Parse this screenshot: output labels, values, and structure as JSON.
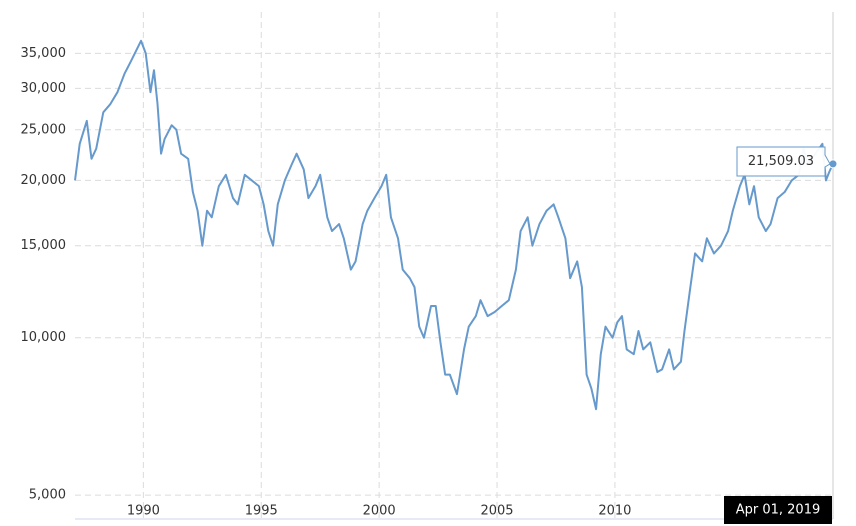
{
  "chart_data": {
    "type": "line",
    "log_scale": true,
    "grid": true,
    "color": "#6699cc",
    "xlim": [
      1987.1,
      2019.25
    ],
    "xticks": [
      1990,
      1995,
      2000,
      2005,
      2010
    ],
    "ylim": [
      4500,
      42000
    ],
    "yticks": [
      {
        "value": 5000,
        "label": "5,000"
      },
      {
        "value": 10000,
        "label": "10,000"
      },
      {
        "value": 15000,
        "label": "15,000"
      },
      {
        "value": 20000,
        "label": "20,000"
      },
      {
        "value": 25000,
        "label": "25,000"
      },
      {
        "value": 30000,
        "label": "30,000"
      },
      {
        "value": 35000,
        "label": "35,000"
      }
    ],
    "x": [
      1987.1,
      1987.3,
      1987.6,
      1987.8,
      1988.0,
      1988.3,
      1988.6,
      1988.9,
      1989.2,
      1989.5,
      1989.9,
      1990.1,
      1990.3,
      1990.45,
      1990.6,
      1990.75,
      1990.9,
      1991.2,
      1991.4,
      1991.6,
      1991.9,
      1992.1,
      1992.3,
      1992.5,
      1992.7,
      1992.9,
      1993.2,
      1993.5,
      1993.8,
      1994.0,
      1994.3,
      1994.6,
      1994.9,
      1995.1,
      1995.3,
      1995.5,
      1995.7,
      1996.0,
      1996.3,
      1996.5,
      1996.8,
      1997.0,
      1997.3,
      1997.5,
      1997.8,
      1998.0,
      1998.3,
      1998.5,
      1998.8,
      1999.0,
      1999.3,
      1999.5,
      1999.8,
      2000.1,
      2000.3,
      2000.5,
      2000.8,
      2001.0,
      2001.3,
      2001.5,
      2001.7,
      2001.9,
      2002.2,
      2002.4,
      2002.6,
      2002.8,
      2003.0,
      2003.3,
      2003.6,
      2003.8,
      2004.1,
      2004.3,
      2004.6,
      2004.9,
      2005.2,
      2005.5,
      2005.8,
      2006.0,
      2006.3,
      2006.5,
      2006.8,
      2007.1,
      2007.4,
      2007.6,
      2007.9,
      2008.1,
      2008.4,
      2008.6,
      2008.8,
      2009.0,
      2009.2,
      2009.4,
      2009.6,
      2009.9,
      2010.1,
      2010.3,
      2010.5,
      2010.8,
      2011.0,
      2011.2,
      2011.5,
      2011.8,
      2012.0,
      2012.3,
      2012.5,
      2012.8,
      2012.95,
      2013.2,
      2013.4,
      2013.7,
      2013.9,
      2014.2,
      2014.5,
      2014.8,
      2015.0,
      2015.3,
      2015.5,
      2015.7,
      2015.9,
      2016.1,
      2016.4,
      2016.6,
      2016.9,
      2017.2,
      2017.5,
      2017.8,
      2018.0,
      2018.2,
      2018.5,
      2018.8,
      2018.95,
      2019.1,
      2019.25
    ],
    "values": [
      20000,
      23500,
      26000,
      22000,
      23000,
      27000,
      28000,
      29500,
      32000,
      34000,
      37000,
      35000,
      29500,
      32500,
      28000,
      22500,
      24000,
      25500,
      25000,
      22500,
      22000,
      19000,
      17500,
      15000,
      17500,
      17000,
      19500,
      20500,
      18500,
      18000,
      20500,
      20000,
      19500,
      18000,
      16000,
      15000,
      18000,
      20000,
      21500,
      22500,
      21000,
      18500,
      19500,
      20500,
      17000,
      16000,
      16500,
      15500,
      13500,
      14000,
      16500,
      17500,
      18500,
      19500,
      20500,
      17000,
      15500,
      13500,
      13000,
      12500,
      10500,
      10000,
      11500,
      11500,
      9800,
      8500,
      8500,
      7800,
      9500,
      10500,
      11000,
      11800,
      11000,
      11200,
      11500,
      11800,
      13500,
      16000,
      17000,
      15000,
      16500,
      17500,
      18000,
      17000,
      15500,
      13000,
      14000,
      12500,
      8500,
      8000,
      7300,
      9300,
      10500,
      10000,
      10700,
      11000,
      9500,
      9300,
      10300,
      9500,
      9800,
      8600,
      8700,
      9500,
      8700,
      9000,
      10300,
      12500,
      14500,
      14000,
      15500,
      14500,
      15000,
      16000,
      17500,
      19500,
      20500,
      18000,
      19500,
      17000,
      16000,
      16500,
      18500,
      19000,
      20000,
      20500,
      23000,
      21500,
      22500,
      23500,
      20000,
      20800,
      21509.03
    ],
    "tooltip": {
      "label": "21,509.03",
      "x_label": "Apr 01, 2019"
    }
  }
}
